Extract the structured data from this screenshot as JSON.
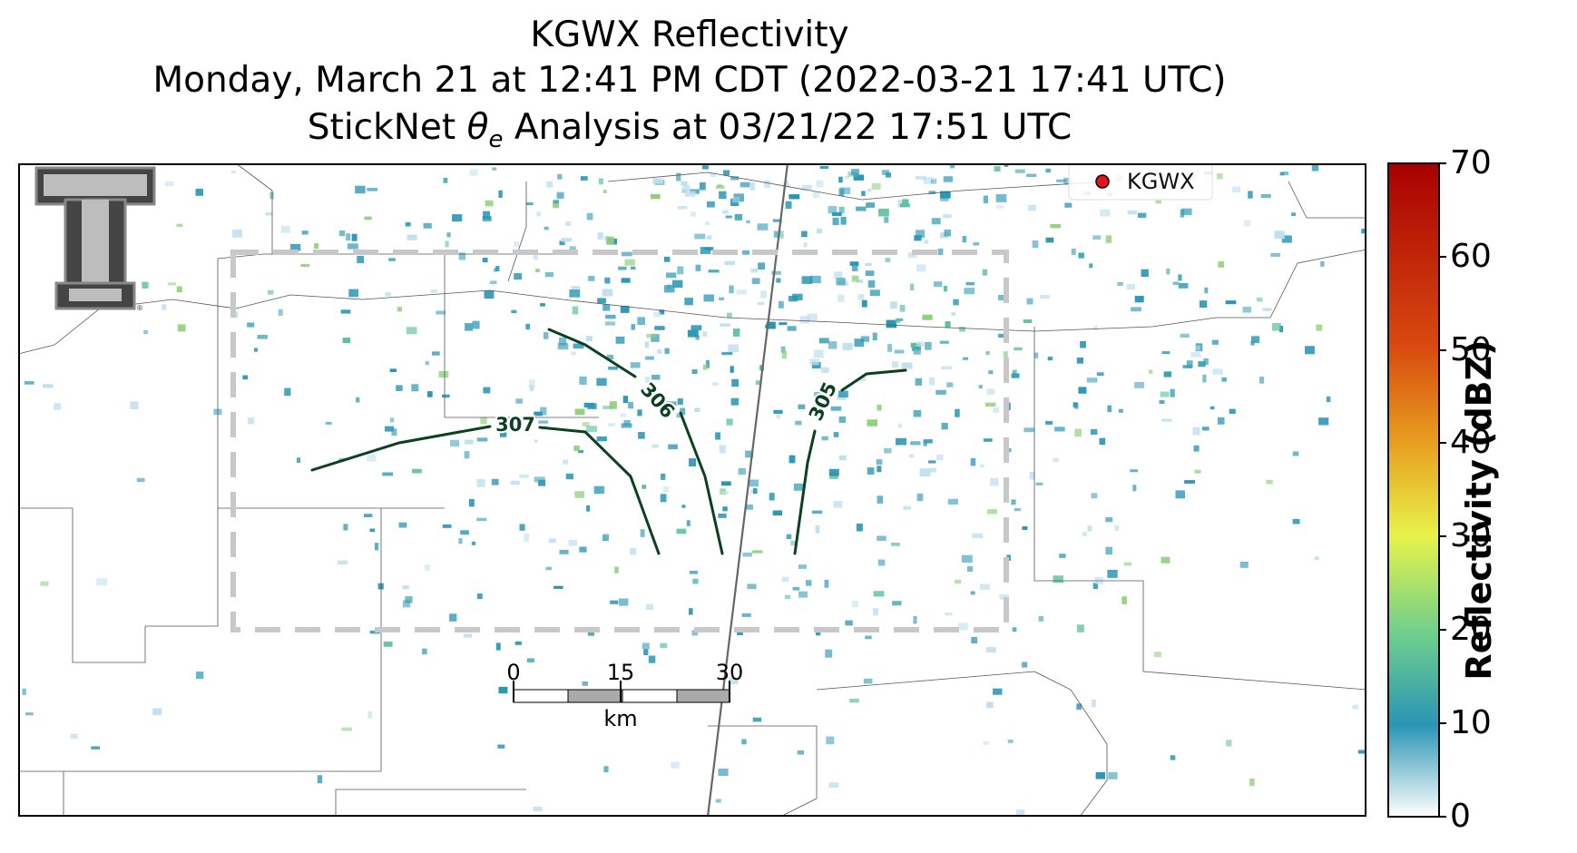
{
  "title": {
    "line1": "KGWX Reflectivity",
    "line2": "Monday, March 21 at 12:41 PM CDT (2022-03-21 17:41 UTC)",
    "line3_prefix": "StickNet ",
    "line3_theta": "θ",
    "line3_sub": "e",
    "line3_suffix": " Analysis at 03/21/22 17:51 UTC"
  },
  "legend": {
    "label": "KGWX",
    "marker_color": "#e8101a"
  },
  "contours": [
    {
      "label": "307",
      "color": "#0b4020"
    },
    {
      "label": "306",
      "color": "#0b4020"
    },
    {
      "label": "305",
      "color": "#0b4020"
    }
  ],
  "scalebar": {
    "ticks": [
      "0",
      "15",
      "30"
    ],
    "unit": "km"
  },
  "colorbar": {
    "label": "Reflectivity (dBZ)",
    "ticks": [
      "0",
      "10",
      "20",
      "30",
      "40",
      "50",
      "60",
      "70"
    ],
    "min": 0,
    "max": 70,
    "stops": [
      "#ffffff",
      "#2a95b5",
      "#6fcf8c",
      "#e8f24a",
      "#e8a020",
      "#d84a10",
      "#a80000"
    ]
  },
  "logo": {
    "name": "texas-tech-double-t",
    "letter": "T",
    "mark": "®"
  }
}
